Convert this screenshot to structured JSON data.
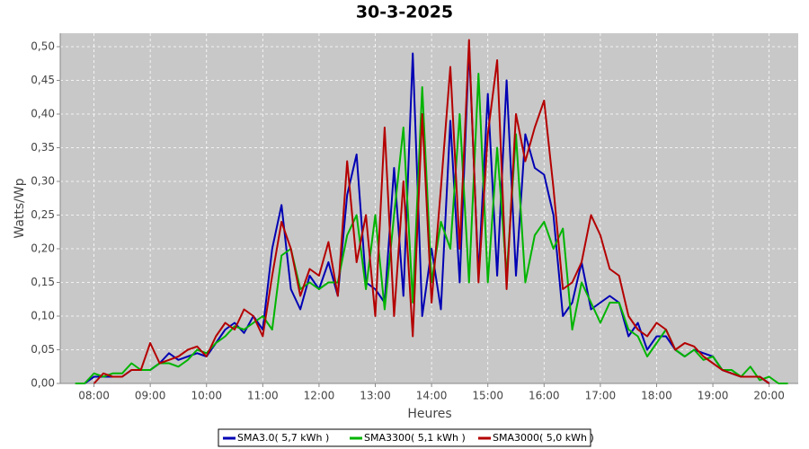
{
  "chart_data": {
    "type": "line",
    "title": "30-3-2025",
    "x_label": "Heures",
    "y_label": "Watts/Wp",
    "x": [
      "07:40",
      "07:50",
      "08:00",
      "08:10",
      "08:20",
      "08:30",
      "08:40",
      "08:50",
      "09:00",
      "09:10",
      "09:20",
      "09:30",
      "09:40",
      "09:50",
      "10:00",
      "10:10",
      "10:20",
      "10:30",
      "10:40",
      "10:50",
      "11:00",
      "11:10",
      "11:20",
      "11:30",
      "11:40",
      "11:50",
      "12:00",
      "12:10",
      "12:20",
      "12:30",
      "12:40",
      "12:50",
      "13:00",
      "13:10",
      "13:20",
      "13:30",
      "13:40",
      "13:50",
      "14:00",
      "14:10",
      "14:20",
      "14:30",
      "14:40",
      "14:50",
      "15:00",
      "15:10",
      "15:20",
      "15:30",
      "15:40",
      "15:50",
      "16:00",
      "16:10",
      "16:20",
      "16:30",
      "16:40",
      "16:50",
      "17:00",
      "17:10",
      "17:20",
      "17:30",
      "17:40",
      "17:50",
      "18:00",
      "18:10",
      "18:20",
      "18:30",
      "18:40",
      "18:50",
      "19:00",
      "19:10",
      "19:20",
      "19:30",
      "19:40",
      "19:50",
      "20:00",
      "20:10",
      "20:20"
    ],
    "series": [
      {
        "name": "SMA3.0( 5,7 kWh )",
        "color": "#0000b4",
        "values": [
          null,
          0.0,
          0.01,
          0.01,
          0.01,
          0.01,
          0.02,
          0.02,
          0.02,
          0.03,
          0.045,
          0.035,
          0.04,
          0.045,
          0.04,
          0.06,
          0.08,
          0.09,
          0.075,
          0.1,
          0.08,
          0.2,
          0.265,
          0.14,
          0.11,
          0.16,
          0.14,
          0.18,
          0.13,
          0.28,
          0.34,
          0.15,
          0.14,
          0.12,
          0.32,
          0.13,
          0.49,
          0.1,
          0.2,
          0.11,
          0.39,
          0.15,
          0.5,
          0.16,
          0.43,
          0.16,
          0.45,
          0.16,
          0.37,
          0.32,
          0.31,
          0.25,
          0.1,
          0.12,
          0.18,
          0.11,
          0.12,
          0.13,
          0.12,
          0.07,
          0.09,
          0.05,
          0.07,
          0.07,
          0.05,
          0.04,
          0.05,
          0.045,
          0.04,
          0.02,
          0.015,
          0.01,
          0.01,
          0.01,
          0.0,
          null,
          null
        ]
      },
      {
        "name": "SMA3300( 5,1 kWh )",
        "color": "#00b400",
        "values": [
          0.0,
          0.0,
          0.015,
          0.01,
          0.015,
          0.015,
          0.03,
          0.02,
          0.02,
          0.03,
          0.03,
          0.025,
          0.035,
          0.05,
          0.045,
          0.06,
          0.07,
          0.085,
          0.08,
          0.09,
          0.1,
          0.08,
          0.19,
          0.2,
          0.14,
          0.15,
          0.14,
          0.15,
          0.15,
          0.22,
          0.25,
          0.14,
          0.25,
          0.11,
          0.25,
          0.38,
          0.12,
          0.44,
          0.15,
          0.24,
          0.2,
          0.4,
          0.15,
          0.46,
          0.15,
          0.35,
          0.16,
          0.37,
          0.15,
          0.22,
          0.24,
          0.2,
          0.23,
          0.08,
          0.15,
          0.12,
          0.09,
          0.12,
          0.12,
          0.08,
          0.07,
          0.04,
          0.06,
          0.08,
          0.05,
          0.04,
          0.05,
          0.035,
          0.04,
          0.02,
          0.02,
          0.01,
          0.025,
          0.005,
          0.01,
          0.0,
          0.0
        ]
      },
      {
        "name": "SMA3000( 5,0 kWh )",
        "color": "#b40000",
        "values": [
          null,
          null,
          0.0,
          0.015,
          0.01,
          0.01,
          0.02,
          0.02,
          0.06,
          0.03,
          0.035,
          0.04,
          0.05,
          0.055,
          0.04,
          0.07,
          0.09,
          0.08,
          0.11,
          0.1,
          0.07,
          0.16,
          0.24,
          0.2,
          0.13,
          0.17,
          0.16,
          0.21,
          0.13,
          0.33,
          0.18,
          0.25,
          0.1,
          0.38,
          0.1,
          0.3,
          0.07,
          0.4,
          0.12,
          0.29,
          0.47,
          0.2,
          0.51,
          0.15,
          0.37,
          0.48,
          0.14,
          0.4,
          0.33,
          0.38,
          0.42,
          0.29,
          0.14,
          0.15,
          0.18,
          0.25,
          0.22,
          0.17,
          0.16,
          0.1,
          0.08,
          0.07,
          0.09,
          0.08,
          0.05,
          0.06,
          0.055,
          0.04,
          0.03,
          0.02,
          0.015,
          0.01,
          0.01,
          0.01,
          0.0,
          null,
          null
        ]
      }
    ],
    "xlim": [
      "07:24",
      "20:31"
    ],
    "xticks": [
      "08:00",
      "09:00",
      "10:00",
      "11:00",
      "12:00",
      "13:00",
      "14:00",
      "15:00",
      "16:00",
      "17:00",
      "18:00",
      "19:00",
      "20:00"
    ],
    "ylim": [
      0,
      0.52
    ],
    "yticks": [
      {
        "value": 0,
        "label": "0,00"
      },
      {
        "value": 0.05,
        "label": "0,05"
      },
      {
        "value": 0.1,
        "label": "0,10"
      },
      {
        "value": 0.15,
        "label": "0,15"
      },
      {
        "value": 0.2,
        "label": "0,20"
      },
      {
        "value": 0.25,
        "label": "0,25"
      },
      {
        "value": 0.3,
        "label": "0,30"
      },
      {
        "value": 0.35,
        "label": "0,35"
      },
      {
        "value": 0.4,
        "label": "0,40"
      },
      {
        "value": 0.45,
        "label": "0,45"
      },
      {
        "value": 0.5,
        "label": "0,50"
      }
    ],
    "grid": true
  }
}
